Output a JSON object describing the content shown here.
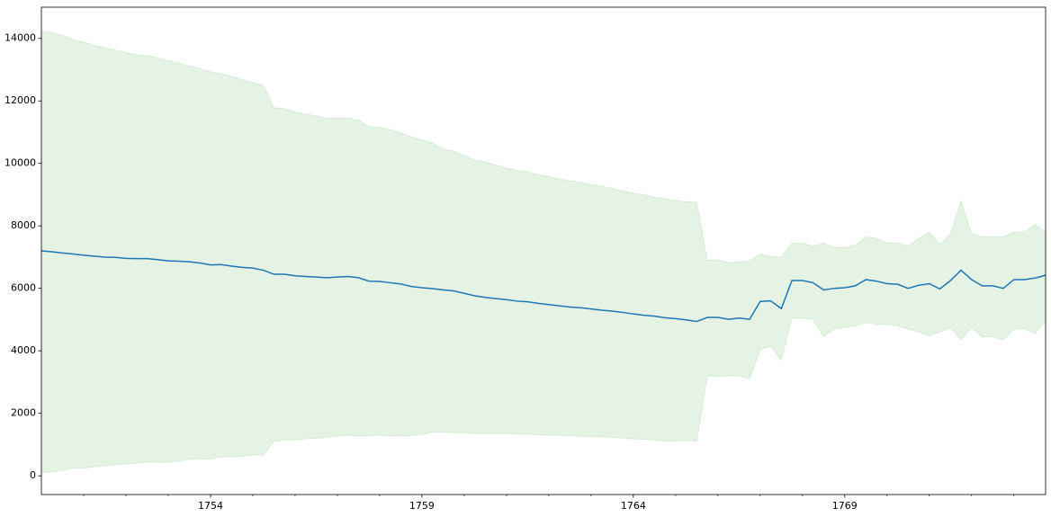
{
  "chart_data": {
    "type": "band-line",
    "x": [
      1750,
      1750.25,
      1750.5,
      1750.75,
      1751,
      1751.25,
      1751.5,
      1751.75,
      1752,
      1752.25,
      1752.5,
      1752.75,
      1753,
      1753.25,
      1753.5,
      1753.75,
      1754,
      1754.25,
      1754.5,
      1754.75,
      1755,
      1755.25,
      1755.5,
      1755.75,
      1756,
      1756.25,
      1756.5,
      1756.75,
      1757,
      1757.25,
      1757.5,
      1757.75,
      1758,
      1758.25,
      1758.5,
      1758.75,
      1759,
      1759.25,
      1759.5,
      1759.75,
      1760,
      1760.25,
      1760.5,
      1760.75,
      1761,
      1761.25,
      1761.5,
      1761.75,
      1762,
      1762.25,
      1762.5,
      1762.75,
      1763,
      1763.25,
      1763.5,
      1763.75,
      1764,
      1764.25,
      1764.5,
      1764.75,
      1765,
      1765.25,
      1765.5,
      1765.75,
      1766,
      1766.25,
      1766.5,
      1766.75,
      1767,
      1767.25,
      1767.5,
      1767.75,
      1768,
      1768.25,
      1768.5,
      1768.75,
      1769,
      1769.25,
      1769.5,
      1769.75,
      1770,
      1770.25,
      1770.5,
      1770.75,
      1771,
      1771.25,
      1771.5,
      1771.75,
      1772,
      1772.25,
      1772.5,
      1772.75,
      1773,
      1773.25,
      1773.5,
      1773.75
    ],
    "values": [
      7200,
      7170,
      7130,
      7100,
      7060,
      7030,
      7000,
      6990,
      6960,
      6950,
      6950,
      6920,
      6880,
      6870,
      6850,
      6810,
      6750,
      6760,
      6710,
      6670,
      6650,
      6580,
      6450,
      6450,
      6400,
      6380,
      6360,
      6340,
      6360,
      6380,
      6340,
      6230,
      6220,
      6180,
      6140,
      6060,
      6020,
      5990,
      5950,
      5920,
      5840,
      5760,
      5710,
      5670,
      5640,
      5590,
      5570,
      5520,
      5480,
      5440,
      5400,
      5380,
      5340,
      5300,
      5270,
      5230,
      5180,
      5140,
      5110,
      5060,
      5030,
      4990,
      4940,
      5070,
      5070,
      5010,
      5050,
      5010,
      5580,
      5600,
      5350,
      6250,
      6250,
      6180,
      5950,
      6000,
      6020,
      6080,
      6280,
      6230,
      6150,
      6130,
      6000,
      6100,
      6150,
      5980,
      6250,
      6580,
      6280,
      6080,
      6080,
      6000,
      6280,
      6280,
      6330,
      6420
    ],
    "upper": [
      14250,
      14180,
      14100,
      13950,
      13880,
      13780,
      13700,
      13630,
      13550,
      13480,
      13450,
      13380,
      13300,
      13200,
      13120,
      13030,
      12930,
      12880,
      12780,
      12680,
      12600,
      12500,
      11780,
      11750,
      11650,
      11580,
      11520,
      11450,
      11450,
      11450,
      11380,
      11180,
      11150,
      11080,
      10980,
      10850,
      10750,
      10650,
      10450,
      10400,
      10250,
      10100,
      10050,
      9950,
      9850,
      9780,
      9720,
      9650,
      9580,
      9500,
      9450,
      9400,
      9320,
      9270,
      9200,
      9120,
      9050,
      9000,
      8920,
      8870,
      8800,
      8780,
      8750,
      6900,
      6920,
      6820,
      6850,
      6880,
      7100,
      7020,
      7000,
      7450,
      7450,
      7350,
      7450,
      7300,
      7300,
      7380,
      7650,
      7600,
      7450,
      7450,
      7350,
      7600,
      7800,
      7400,
      7750,
      8800,
      7750,
      7650,
      7650,
      7650,
      7800,
      7800,
      8050,
      7800
    ],
    "lower": [
      100,
      130,
      180,
      250,
      250,
      280,
      320,
      360,
      380,
      400,
      450,
      430,
      430,
      470,
      520,
      550,
      530,
      600,
      610,
      620,
      680,
      660,
      1100,
      1150,
      1150,
      1180,
      1200,
      1230,
      1270,
      1300,
      1280,
      1290,
      1300,
      1290,
      1280,
      1290,
      1320,
      1400,
      1400,
      1380,
      1380,
      1350,
      1350,
      1350,
      1350,
      1340,
      1330,
      1310,
      1300,
      1300,
      1290,
      1260,
      1260,
      1240,
      1230,
      1200,
      1180,
      1170,
      1140,
      1110,
      1110,
      1130,
      1110,
      3200,
      3180,
      3200,
      3200,
      3100,
      4050,
      4150,
      3700,
      5050,
      5050,
      5000,
      4450,
      4700,
      4750,
      4800,
      4900,
      4850,
      4850,
      4800,
      4700,
      4600,
      4480,
      4600,
      4750,
      4350,
      4750,
      4450,
      4450,
      4350,
      4700,
      4700,
      4550,
      4950
    ],
    "color": "#1f77b4",
    "band_color": "#2ca02c",
    "xlim": [
      1750,
      1773.75
    ],
    "xticks": [
      1754,
      1759,
      1764,
      1769
    ],
    "xminorticks": [
      1751,
      1752,
      1753,
      1755,
      1756,
      1757,
      1758,
      1760,
      1761,
      1762,
      1763,
      1765,
      1766,
      1767,
      1768,
      1770,
      1771,
      1772,
      1773
    ],
    "ylim": [
      -600,
      15000
    ],
    "yticks": [
      0,
      2000,
      4000,
      6000,
      8000,
      10000,
      12000,
      14000
    ]
  }
}
